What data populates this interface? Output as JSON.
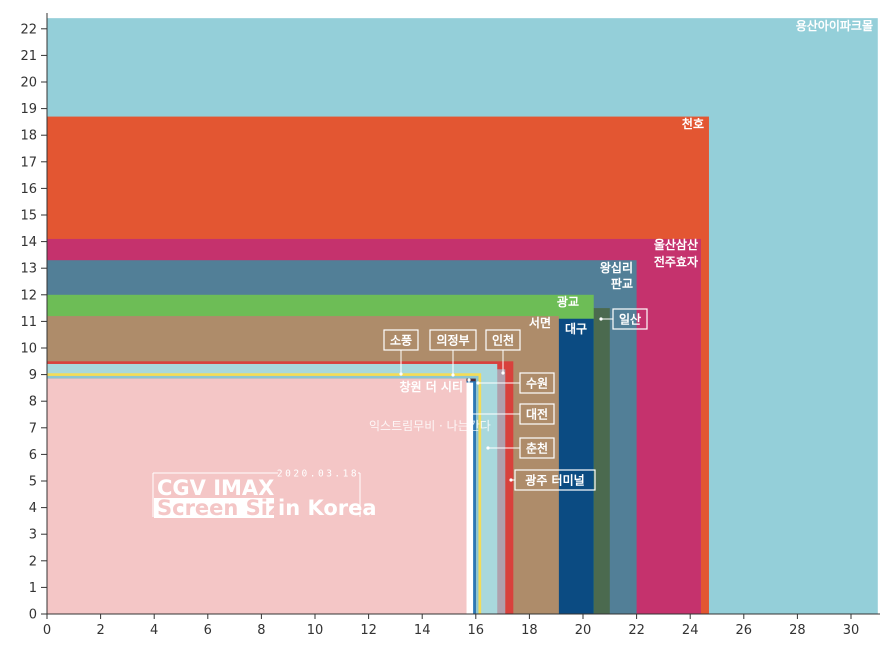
{
  "chart_data": {
    "type": "area",
    "title_line1": "CGV IMAX",
    "title_line2_boxed": "Screen Size",
    "title_line2_rest": "in Korea",
    "date": "2020.03.18",
    "xlabel": "",
    "ylabel": "",
    "xlim": [
      0,
      31
    ],
    "ylim": [
      0,
      22.5
    ],
    "x_ticks": [
      0,
      2,
      4,
      6,
      8,
      10,
      12,
      14,
      16,
      18,
      20,
      22,
      24,
      26,
      28,
      30
    ],
    "y_ticks": [
      0,
      1,
      2,
      3,
      4,
      5,
      6,
      7,
      8,
      9,
      10,
      11,
      12,
      13,
      14,
      15,
      16,
      17,
      18,
      19,
      20,
      21,
      22
    ],
    "grid": false,
    "series": [
      {
        "name": "용산아이파크몰",
        "width": 31.0,
        "height": 22.4,
        "color": "#94cfd9"
      },
      {
        "name": "천호",
        "width": 24.7,
        "height": 18.7,
        "color": "#e35632"
      },
      {
        "name": "울산삼산 전주효자",
        "width": 24.4,
        "height": 14.1,
        "color": "#c5326d"
      },
      {
        "name": "왕십리 판교",
        "width": 22.0,
        "height": 13.3,
        "color": "#527f97"
      },
      {
        "name": "일산",
        "width": 21.0,
        "height": 11.5,
        "color": "#4b6a4f"
      },
      {
        "name": "광교",
        "width": 20.4,
        "height": 12.0,
        "color": "#6dbd56"
      },
      {
        "name": "대구",
        "width": 20.4,
        "height": 11.1,
        "color": "#0b4b82"
      },
      {
        "name": "서면",
        "width": 19.1,
        "height": 11.2,
        "color": "#ae8c6a"
      },
      {
        "name": "광주 터미널",
        "width": 17.4,
        "height": 9.5,
        "color": "#d8413c"
      },
      {
        "name": "춘천",
        "width": 17.1,
        "height": 9.2,
        "color": "#b0a0ac"
      },
      {
        "name": "대전",
        "width": 16.8,
        "height": 9.4,
        "color": "#a9d8dc"
      },
      {
        "name": "인천",
        "width": 16.2,
        "height": 9.05,
        "color": "#f4dc57"
      },
      {
        "name": "수원",
        "width": 16.1,
        "height": 8.95,
        "color": "#8dc6d2"
      },
      {
        "name": "의정부",
        "width": 16.0,
        "height": 8.85,
        "color": "#4a2f3c"
      },
      {
        "name": "소풍",
        "width": 16.0,
        "height": 8.75,
        "color": "#2a79b8"
      },
      {
        "name": "창원 더 시티",
        "width": 15.9,
        "height": 8.7,
        "color": "#ffffff"
      },
      {
        "name": "익스트림무비 · 나는간다",
        "width": 15.65,
        "height": 8.85,
        "color": "#f2a09a"
      },
      {
        "name": "",
        "width": 15.65,
        "height": 8.85,
        "color": "#f4c6c6"
      }
    ]
  }
}
